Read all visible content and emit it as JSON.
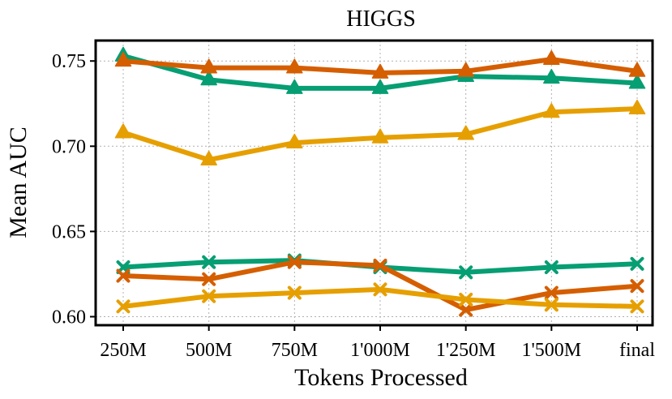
{
  "chart_data": {
    "type": "line",
    "title": "HIGGS",
    "xlabel": "Tokens Processed",
    "ylabel": "Mean AUC",
    "categories": [
      "250M",
      "500M",
      "750M",
      "1'000M",
      "1'250M",
      "1'500M",
      "final"
    ],
    "ylim": [
      0.595,
      0.762
    ],
    "yticks": [
      0.6,
      0.65,
      0.7,
      0.75
    ],
    "ytick_labels": [
      "0.60",
      "0.65",
      "0.70",
      "0.75"
    ],
    "grid": true,
    "series": [
      {
        "name": "green-triangle",
        "color": "#069e73",
        "marker": "triangle",
        "values": [
          0.753,
          0.739,
          0.734,
          0.734,
          0.741,
          0.74,
          0.737
        ]
      },
      {
        "name": "vermilion-triangle",
        "color": "#d55e00",
        "marker": "triangle",
        "values": [
          0.75,
          0.746,
          0.746,
          0.743,
          0.744,
          0.751,
          0.744
        ]
      },
      {
        "name": "orange-triangle",
        "color": "#e69f00",
        "marker": "triangle",
        "values": [
          0.708,
          0.692,
          0.702,
          0.705,
          0.707,
          0.72,
          0.722
        ]
      },
      {
        "name": "green-x",
        "color": "#069e73",
        "marker": "x",
        "values": [
          0.629,
          0.632,
          0.633,
          0.629,
          0.626,
          0.629,
          0.631
        ]
      },
      {
        "name": "vermilion-x",
        "color": "#d55e00",
        "marker": "x",
        "values": [
          0.624,
          0.622,
          0.632,
          0.63,
          0.604,
          0.614,
          0.618
        ]
      },
      {
        "name": "orange-x",
        "color": "#e69f00",
        "marker": "x",
        "values": [
          0.606,
          0.612,
          0.614,
          0.616,
          0.61,
          0.607,
          0.606
        ]
      }
    ]
  }
}
